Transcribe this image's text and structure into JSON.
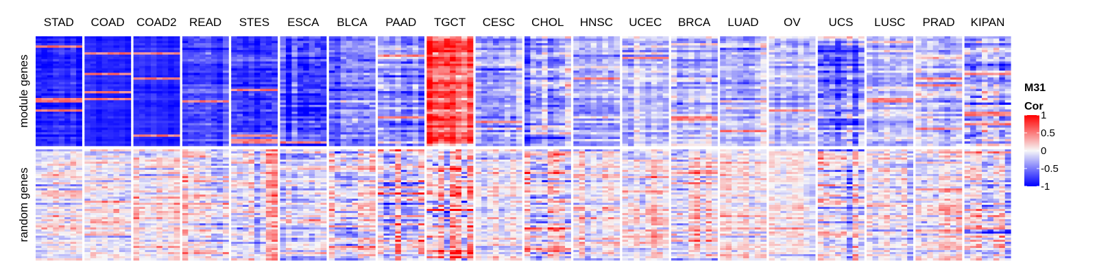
{
  "chart_data": {
    "type": "heatmap",
    "title": "",
    "columns": [
      "STAD",
      "COAD",
      "COAD2",
      "READ",
      "STES",
      "ESCA",
      "BLCA",
      "PAAD",
      "TGCT",
      "CESC",
      "CHOL",
      "HNSC",
      "UCEC",
      "BRCA",
      "LUAD",
      "OV",
      "UCS",
      "LUSC",
      "PRAD",
      "KIPAN"
    ],
    "row_groups": [
      "module genes",
      "random genes"
    ],
    "legend": {
      "title_line1": "M31",
      "title_line2": "Cor",
      "ticks": [
        "1",
        "0.5",
        "0",
        "-0.5",
        "-1"
      ],
      "placement": "right"
    },
    "colors": {
      "low": "#0000ff",
      "mid": "#f7f7f7",
      "high": "#ff0000"
    },
    "value_range": [
      -1,
      1
    ],
    "approx_mean_correlation": {
      "module genes": [
        -0.85,
        -0.85,
        -0.85,
        -0.72,
        -0.78,
        -0.66,
        -0.55,
        -0.5,
        0.72,
        -0.28,
        -0.28,
        -0.3,
        -0.3,
        -0.22,
        -0.22,
        -0.2,
        -0.45,
        -0.22,
        -0.25,
        -0.18
      ],
      "random genes": [
        0.0,
        0.02,
        0.02,
        0.0,
        0.0,
        0.0,
        0.0,
        0.0,
        0.05,
        0.0,
        0.0,
        0.0,
        0.0,
        0.0,
        0.0,
        0.0,
        0.0,
        0.0,
        0.0,
        0.0
      ]
    },
    "approx_variability": {
      "module genes": [
        0.1,
        0.06,
        0.06,
        0.12,
        0.15,
        0.2,
        0.18,
        0.2,
        0.22,
        0.2,
        0.25,
        0.18,
        0.18,
        0.2,
        0.18,
        0.18,
        0.28,
        0.18,
        0.2,
        0.3
      ],
      "random genes": [
        0.22,
        0.2,
        0.2,
        0.25,
        0.22,
        0.22,
        0.28,
        0.3,
        0.38,
        0.18,
        0.3,
        0.22,
        0.22,
        0.22,
        0.18,
        0.15,
        0.3,
        0.2,
        0.22,
        0.28
      ]
    }
  }
}
